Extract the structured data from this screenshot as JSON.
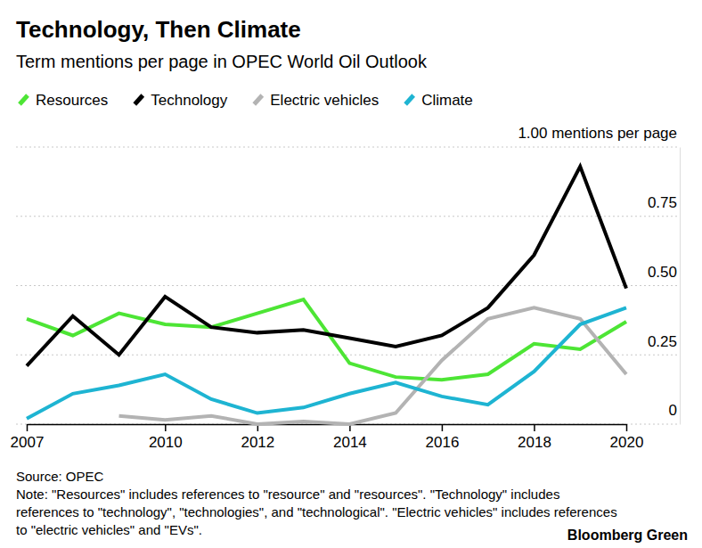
{
  "chart_data": {
    "type": "line",
    "title": "Technology, Then Climate",
    "subtitle": "Term mentions per page in OPEC World Oil Outlook",
    "source": "Source: OPEC",
    "note": [
      "Note: \"Resources\" includes references to \"resource\" and \"resources\". \"Technology\" includes",
      "references to \"technology\", \"technologies\", and \"technological\". \"Electric vehicles\" includes references",
      "to \"electric vehicles\" and \"EVs\"."
    ],
    "credit": "Bloomberg Green",
    "x": [
      2007,
      2008,
      2009,
      2010,
      2011,
      2012,
      2013,
      2014,
      2015,
      2016,
      2017,
      2018,
      2019,
      2020
    ],
    "xlim": [
      2007,
      2020
    ],
    "xticks": [
      2007,
      2010,
      2012,
      2014,
      2016,
      2018,
      2020
    ],
    "ylim": [
      0,
      1
    ],
    "yticks": [
      0,
      0.25,
      {
        "value": 0.5,
        "label": "0.50"
      },
      0.75,
      {
        "value": 1,
        "label": "1.00 mentions per page"
      }
    ],
    "grid": true,
    "legend": "top-left",
    "series": [
      {
        "name": "Resources",
        "color": "#4de535",
        "values": [
          0.38,
          0.32,
          0.4,
          0.36,
          0.35,
          0.4,
          0.45,
          0.22,
          0.17,
          0.16,
          0.18,
          0.29,
          0.27,
          0.37
        ]
      },
      {
        "name": "Technology",
        "color": "#000000",
        "values": [
          0.21,
          0.39,
          0.25,
          0.46,
          0.35,
          0.33,
          0.34,
          0.31,
          0.28,
          0.32,
          0.42,
          0.61,
          0.93,
          0.49
        ]
      },
      {
        "name": "Electric vehicles",
        "color": "#b3b3b3",
        "values": [
          null,
          null,
          0.03,
          0.015,
          0.03,
          0,
          0.01,
          0,
          0.04,
          0.23,
          0.38,
          0.42,
          0.38,
          0.18
        ]
      },
      {
        "name": "Climate",
        "color": "#1eb4d2",
        "values": [
          0.02,
          0.11,
          0.14,
          0.18,
          0.09,
          0.04,
          0.06,
          0.11,
          0.15,
          0.1,
          0.07,
          0.19,
          0.36,
          0.42
        ]
      }
    ]
  }
}
